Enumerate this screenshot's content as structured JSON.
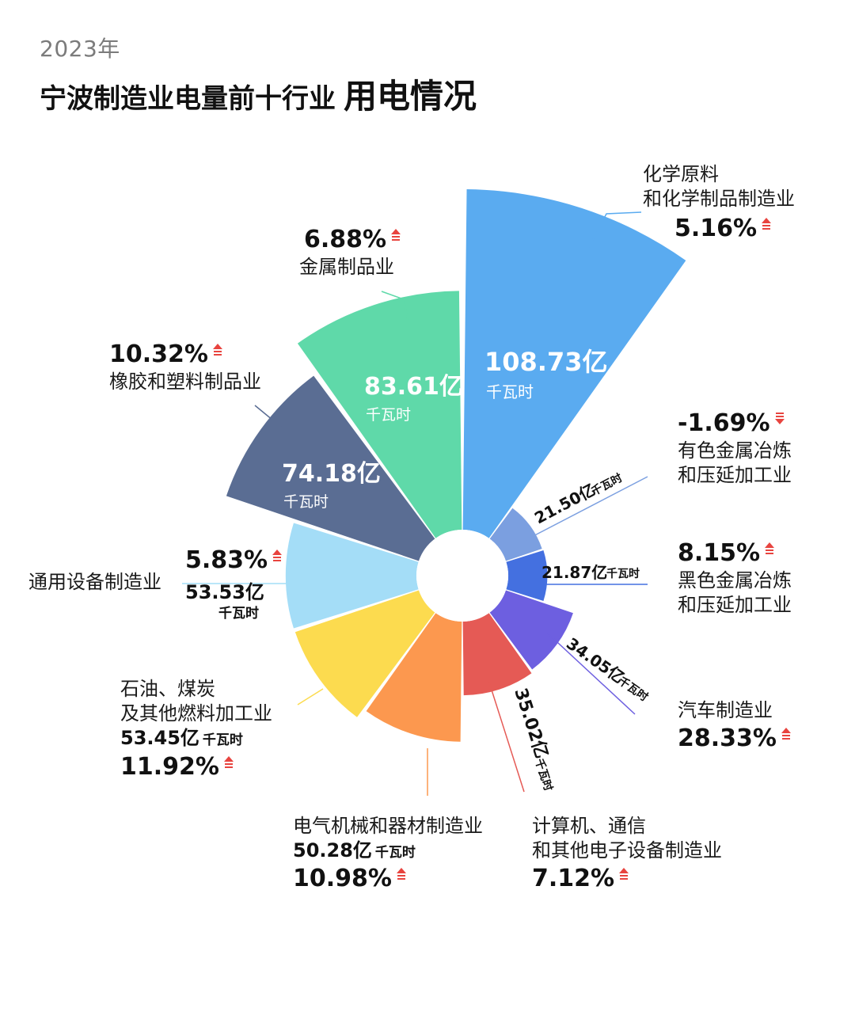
{
  "header": {
    "year": "2023年",
    "title_main": "宁波制造业电量前十行业",
    "title_emph": "用电情况"
  },
  "colors": {
    "up": "#e8443f",
    "down": "#e8443f",
    "hub": "#ffffff"
  },
  "chart_data": {
    "type": "pie",
    "variant": "polar-area (rose) with donut hole",
    "unit": "千瓦时",
    "segments": [
      {
        "name": "化学原料\n和化学制品制造业",
        "value": 108.73,
        "value_label": "108.73亿",
        "unit": "千瓦时",
        "change": "5.16%",
        "trend": "up",
        "color": "#5aabf0"
      },
      {
        "name": "有色金属冶炼\n和压延加工业",
        "value": 21.5,
        "value_label": "21.50亿",
        "unit": "千瓦时",
        "change": "-1.69%",
        "trend": "down",
        "color": "#7b9fe0"
      },
      {
        "name": "黑色金属冶炼\n和压延加工业",
        "value": 21.87,
        "value_label": "21.87亿",
        "unit": "千瓦时",
        "change": "8.15%",
        "trend": "up",
        "color": "#4470e0"
      },
      {
        "name": "汽车制造业",
        "value": 34.05,
        "value_label": "34.05亿",
        "unit": "千瓦时",
        "change": "28.33%",
        "trend": "up",
        "color": "#6d5fe0"
      },
      {
        "name": "计算机、通信\n和其他电子设备制造业",
        "value": 35.02,
        "value_label": "35.02亿",
        "unit": "千瓦时",
        "change": "7.12%",
        "trend": "up",
        "color": "#e55a55"
      },
      {
        "name": "电气机械和器材制造业",
        "value": 50.28,
        "value_label": "50.28亿",
        "unit": "千瓦时",
        "change": "10.98%",
        "trend": "up",
        "color": "#fc984f"
      },
      {
        "name": "石油、煤炭\n及其他燃料加工业",
        "value": 53.45,
        "value_label": "53.45亿",
        "unit": "千瓦时",
        "change": "11.92%",
        "trend": "up",
        "color": "#fcdb4f"
      },
      {
        "name": "通用设备制造业",
        "value": 53.53,
        "value_label": "53.53亿",
        "unit": "千瓦时",
        "change": "5.83%",
        "trend": "up",
        "color": "#a4ddf7"
      },
      {
        "name": "橡胶和塑料制品业",
        "value": 74.18,
        "value_label": "74.18亿",
        "unit": "千瓦时",
        "change": "10.32%",
        "trend": "up",
        "color": "#5a6d93"
      },
      {
        "name": "金属制品业",
        "value": 83.61,
        "value_label": "83.61亿",
        "unit": "千瓦时",
        "change": "6.88%",
        "trend": "up",
        "color": "#5fd9a9"
      }
    ]
  }
}
